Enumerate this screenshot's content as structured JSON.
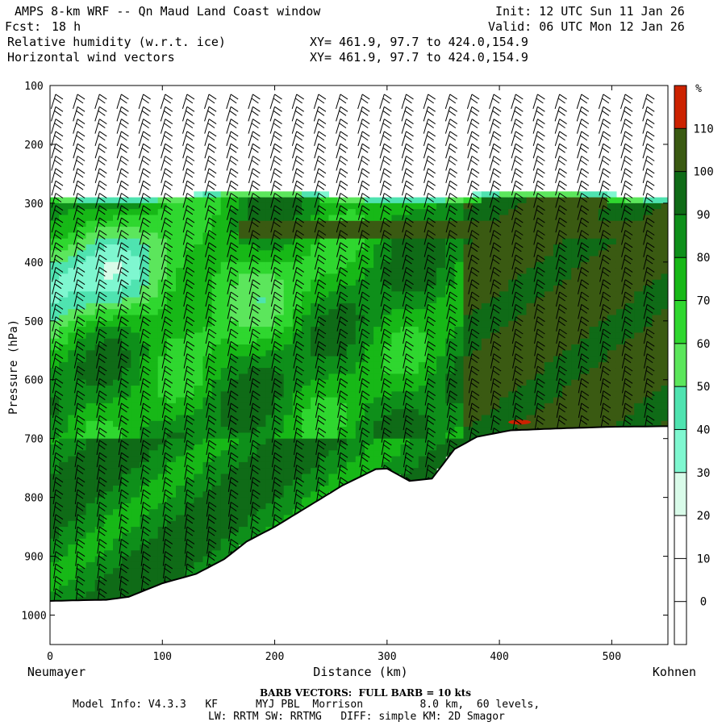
{
  "header": {
    "title_left": "AMPS 8-km WRF -- Qn Maud Land Coast window",
    "fcst_label": "Fcst:",
    "fcst_value": "18 h",
    "init": "Init: 12 UTC Sun 11 Jan 26",
    "valid": "Valid: 06 UTC Mon 12 Jan 26",
    "field1": "Relative humidity (w.r.t. ice)",
    "field2": "Horizontal wind vectors",
    "xy1": "XY= 461.9, 97.7 to 424.0,154.9",
    "xy2": "XY= 461.9, 97.7 to 424.0,154.9"
  },
  "chart_data": {
    "type": "heatmap",
    "title": "Relative humidity (w.r.t. ice) cross section with horizontal wind vectors",
    "xlabel": "Distance (km)",
    "ylabel": "Pressure (hPa)",
    "xlim": [
      0,
      550
    ],
    "ylim": [
      1050,
      100
    ],
    "x_ticks": [
      0,
      100,
      200,
      300,
      400,
      500
    ],
    "y_ticks": [
      100,
      200,
      300,
      400,
      500,
      600,
      700,
      800,
      900,
      1000
    ],
    "x_start_label": "Neumayer",
    "x_end_label": "Kohnen",
    "colorbar_unit": "%",
    "colorbar_levels": [
      0,
      10,
      20,
      30,
      40,
      50,
      60,
      70,
      80,
      90,
      100,
      110
    ],
    "colorbar_colors": [
      "#ffffff",
      "#ffffff",
      "#ffffff",
      "#d9fbe9",
      "#7ff7d0",
      "#4fe3b0",
      "#5ce65c",
      "#2fd72f",
      "#17b817",
      "#0e8f1a",
      "#0f6b17",
      "#3a5a12",
      "#cc2200"
    ],
    "terrain": {
      "distance_km": [
        0,
        20,
        50,
        70,
        100,
        130,
        155,
        175,
        200,
        230,
        260,
        290,
        300,
        320,
        340,
        360,
        380,
        410,
        450,
        500,
        550
      ],
      "pressure_hPa": [
        976,
        975,
        974,
        969,
        946,
        930,
        905,
        875,
        850,
        815,
        780,
        752,
        751,
        772,
        768,
        718,
        697,
        686,
        683,
        680,
        679
      ]
    },
    "moist_top_hPa": 285
  },
  "footer": {
    "barb_note": "BARB VECTORS:  FULL BARB = 10 kts",
    "model_info": "Model Info: V4.3.3   KF      MYJ PBL  Morrison         8.0 km,  60 levels,",
    "physics": "LW: RRTM SW: RRTMG   DIFF: simple KM: 2D Smagor"
  }
}
